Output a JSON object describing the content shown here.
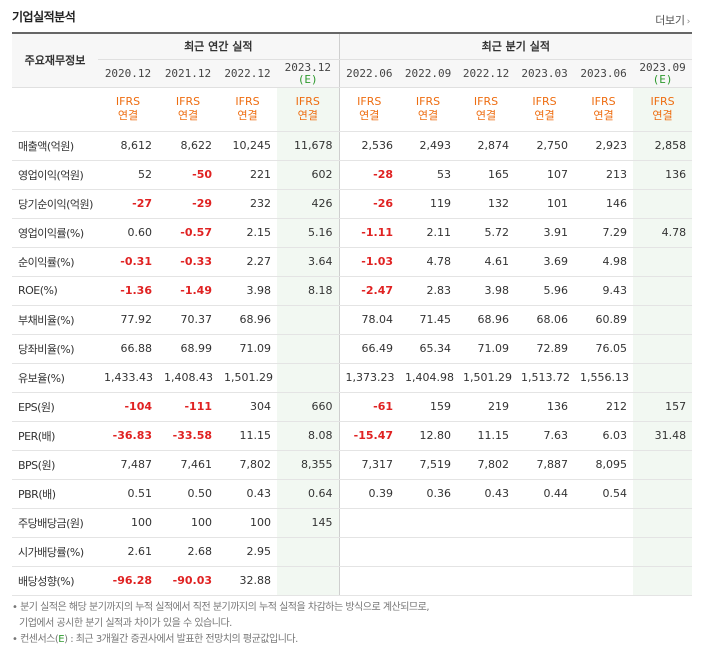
{
  "section_title": "기업실적분석",
  "more_label": "더보기",
  "header": {
    "row_label": "주요재무정보",
    "annual_group": "최근 연간 실적",
    "quarter_group": "최근 분기 실적",
    "annual_periods": [
      {
        "date": "2020.12",
        "est": ""
      },
      {
        "date": "2021.12",
        "est": ""
      },
      {
        "date": "2022.12",
        "est": ""
      },
      {
        "date": "2023.12",
        "est": "(E)"
      }
    ],
    "quarter_periods": [
      {
        "date": "2022.06",
        "est": ""
      },
      {
        "date": "2022.09",
        "est": ""
      },
      {
        "date": "2022.12",
        "est": ""
      },
      {
        "date": "2023.03",
        "est": ""
      },
      {
        "date": "2023.06",
        "est": ""
      },
      {
        "date": "2023.09",
        "est": "(E)"
      }
    ],
    "basis_line1": "IFRS",
    "basis_line2": "연결"
  },
  "rows": [
    {
      "label": "매출액(억원)",
      "values": [
        "8,612",
        "8,622",
        "10,245",
        "11,678",
        "2,536",
        "2,493",
        "2,874",
        "2,750",
        "2,923",
        "2,858"
      ],
      "neg": [
        false,
        false,
        false,
        false,
        false,
        false,
        false,
        false,
        false,
        false
      ]
    },
    {
      "label": "영업이익(억원)",
      "values": [
        "52",
        "-50",
        "221",
        "602",
        "-28",
        "53",
        "165",
        "107",
        "213",
        "136"
      ],
      "neg": [
        false,
        true,
        false,
        false,
        true,
        false,
        false,
        false,
        false,
        false
      ]
    },
    {
      "label": "당기순이익(억원)",
      "values": [
        "-27",
        "-29",
        "232",
        "426",
        "-26",
        "119",
        "132",
        "101",
        "146",
        ""
      ],
      "neg": [
        true,
        true,
        false,
        false,
        true,
        false,
        false,
        false,
        false,
        false
      ]
    },
    {
      "label": "영업이익률(%)",
      "values": [
        "0.60",
        "-0.57",
        "2.15",
        "5.16",
        "-1.11",
        "2.11",
        "5.72",
        "3.91",
        "7.29",
        "4.78"
      ],
      "neg": [
        false,
        true,
        false,
        false,
        true,
        false,
        false,
        false,
        false,
        false
      ]
    },
    {
      "label": "순이익률(%)",
      "values": [
        "-0.31",
        "-0.33",
        "2.27",
        "3.64",
        "-1.03",
        "4.78",
        "4.61",
        "3.69",
        "4.98",
        ""
      ],
      "neg": [
        true,
        true,
        false,
        false,
        true,
        false,
        false,
        false,
        false,
        false
      ]
    },
    {
      "label": "ROE(%)",
      "values": [
        "-1.36",
        "-1.49",
        "3.98",
        "8.18",
        "-2.47",
        "2.83",
        "3.98",
        "5.96",
        "9.43",
        ""
      ],
      "neg": [
        true,
        true,
        false,
        false,
        true,
        false,
        false,
        false,
        false,
        false
      ]
    },
    {
      "label": "부채비율(%)",
      "values": [
        "77.92",
        "70.37",
        "68.96",
        "",
        "78.04",
        "71.45",
        "68.96",
        "68.06",
        "60.89",
        ""
      ],
      "neg": [
        false,
        false,
        false,
        false,
        false,
        false,
        false,
        false,
        false,
        false
      ]
    },
    {
      "label": "당좌비율(%)",
      "values": [
        "66.88",
        "68.99",
        "71.09",
        "",
        "66.49",
        "65.34",
        "71.09",
        "72.89",
        "76.05",
        ""
      ],
      "neg": [
        false,
        false,
        false,
        false,
        false,
        false,
        false,
        false,
        false,
        false
      ]
    },
    {
      "label": "유보율(%)",
      "values": [
        "1,433.43",
        "1,408.43",
        "1,501.29",
        "",
        "1,373.23",
        "1,404.98",
        "1,501.29",
        "1,513.72",
        "1,556.13",
        ""
      ],
      "neg": [
        false,
        false,
        false,
        false,
        false,
        false,
        false,
        false,
        false,
        false
      ]
    },
    {
      "label": "EPS(원)",
      "values": [
        "-104",
        "-111",
        "304",
        "660",
        "-61",
        "159",
        "219",
        "136",
        "212",
        "157"
      ],
      "neg": [
        true,
        true,
        false,
        false,
        true,
        false,
        false,
        false,
        false,
        false
      ]
    },
    {
      "label": "PER(배)",
      "values": [
        "-36.83",
        "-33.58",
        "11.15",
        "8.08",
        "-15.47",
        "12.80",
        "11.15",
        "7.63",
        "6.03",
        "31.48"
      ],
      "neg": [
        true,
        true,
        false,
        false,
        true,
        false,
        false,
        false,
        false,
        false
      ]
    },
    {
      "label": "BPS(원)",
      "values": [
        "7,487",
        "7,461",
        "7,802",
        "8,355",
        "7,317",
        "7,519",
        "7,802",
        "7,887",
        "8,095",
        ""
      ],
      "neg": [
        false,
        false,
        false,
        false,
        false,
        false,
        false,
        false,
        false,
        false
      ]
    },
    {
      "label": "PBR(배)",
      "values": [
        "0.51",
        "0.50",
        "0.43",
        "0.64",
        "0.39",
        "0.36",
        "0.43",
        "0.44",
        "0.54",
        ""
      ],
      "neg": [
        false,
        false,
        false,
        false,
        false,
        false,
        false,
        false,
        false,
        false
      ]
    },
    {
      "label": "주당배당금(원)",
      "values": [
        "100",
        "100",
        "100",
        "145",
        "",
        "",
        "",
        "",
        "",
        ""
      ],
      "neg": [
        false,
        false,
        false,
        false,
        false,
        false,
        false,
        false,
        false,
        false
      ]
    },
    {
      "label": "시가배당률(%)",
      "values": [
        "2.61",
        "2.68",
        "2.95",
        "",
        "",
        "",
        "",
        "",
        "",
        ""
      ],
      "neg": [
        false,
        false,
        false,
        false,
        false,
        false,
        false,
        false,
        false,
        false
      ]
    },
    {
      "label": "배당성향(%)",
      "values": [
        "-96.28",
        "-90.03",
        "32.88",
        "",
        "",
        "",
        "",
        "",
        "",
        ""
      ],
      "neg": [
        true,
        true,
        false,
        false,
        false,
        false,
        false,
        false,
        false,
        false
      ]
    }
  ],
  "group_breaks": [
    3,
    9,
    13
  ],
  "notes": {
    "line1": "분기 실적은 해당 분기까지의 누적 실적에서 직전 분기까지의 누적 실적을 차감하는 방식으로 계산되므로,",
    "line2": "기업에서 공시한 분기 실적과 차이가 있을 수 있습니다.",
    "line3_prefix": "컨센서스(",
    "line3_e": "E",
    "line3_suffix": ") : 최근 3개월간 증권사에서 발표한 전망치의 평균값입니다."
  },
  "colors": {
    "negative": "#e02222",
    "basis": "#ee6d11",
    "estimate": "#2e9a2e",
    "estimate_bg": "#f2f8f2",
    "header_bg": "#f7f7f7"
  }
}
